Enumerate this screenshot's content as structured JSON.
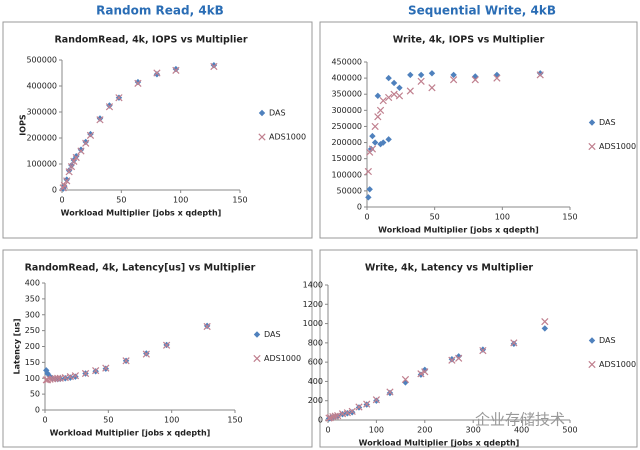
{
  "headers": [
    "Random Read, 4kB",
    "Sequential Write, 4kB"
  ],
  "watermark": "企业存储技术",
  "chart_data": [
    {
      "type": "scatter",
      "title": "RandomRead, 4k, IOPS vs Multiplier",
      "x_label": "Workload Multiplier [jobs x qdepth]",
      "y_label": "IOPS",
      "xlim": [
        0,
        150
      ],
      "xticks": [
        0,
        50,
        100,
        150
      ],
      "ylim": [
        0,
        500000
      ],
      "yticks": [
        0,
        100000,
        200000,
        300000,
        400000,
        500000
      ],
      "series": [
        {
          "name": "DAS",
          "color": "#4f81bd",
          "marker": "diamond",
          "x": [
            1,
            2,
            4,
            6,
            8,
            10,
            12,
            16,
            20,
            24,
            32,
            40,
            48,
            64,
            80,
            96,
            128
          ],
          "values": [
            5000,
            15000,
            40000,
            75000,
            95000,
            115000,
            130000,
            155000,
            185000,
            215000,
            275000,
            325000,
            355000,
            415000,
            445000,
            465000,
            480000
          ]
        },
        {
          "name": "ADS1000",
          "color": "#c0808f",
          "marker": "x",
          "x": [
            1,
            2,
            4,
            6,
            8,
            10,
            12,
            16,
            20,
            24,
            32,
            40,
            48,
            64,
            80,
            96,
            128
          ],
          "values": [
            8000,
            18000,
            35000,
            70000,
            90000,
            110000,
            125000,
            150000,
            180000,
            210000,
            270000,
            320000,
            355000,
            410000,
            450000,
            460000,
            475000
          ]
        }
      ]
    },
    {
      "type": "scatter",
      "title": "Write, 4k, IOPS vs Multiplier",
      "x_label": "Workload Multiplier [jobs x qdepth]",
      "xlim": [
        0,
        150
      ],
      "xticks": [
        0,
        50,
        100,
        150
      ],
      "ylim": [
        0,
        450000
      ],
      "yticks": [
        0,
        50000,
        100000,
        150000,
        200000,
        250000,
        300000,
        350000,
        400000,
        450000
      ],
      "series": [
        {
          "name": "DAS",
          "color": "#4f81bd",
          "marker": "diamond",
          "x": [
            1,
            2,
            3,
            4,
            6,
            8,
            10,
            12,
            16,
            16,
            20,
            24,
            32,
            40,
            48,
            64,
            80,
            96,
            128
          ],
          "values": [
            30000,
            55000,
            180000,
            220000,
            200000,
            345000,
            195000,
            200000,
            210000,
            400000,
            385000,
            370000,
            410000,
            410000,
            415000,
            410000,
            405000,
            410000,
            415000
          ]
        },
        {
          "name": "ADS1000",
          "color": "#c0808f",
          "marker": "x",
          "x": [
            1,
            2,
            4,
            6,
            8,
            10,
            12,
            16,
            20,
            24,
            32,
            40,
            48,
            64,
            80,
            96,
            128
          ],
          "values": [
            110000,
            170000,
            180000,
            250000,
            280000,
            300000,
            330000,
            340000,
            350000,
            345000,
            360000,
            390000,
            370000,
            395000,
            395000,
            400000,
            410000
          ]
        }
      ]
    },
    {
      "type": "scatter",
      "title": "RandomRead, 4k, Latency[us] vs Multiplier",
      "x_label": "Workload Multiplier [jobs x qdepth]",
      "y_label": "Latency [us]",
      "xlim": [
        0,
        150
      ],
      "xticks": [
        0,
        50,
        100,
        150
      ],
      "ylim": [
        0,
        400
      ],
      "yticks": [
        0,
        50,
        100,
        150,
        200,
        250,
        300,
        350,
        400
      ],
      "series": [
        {
          "name": "DAS",
          "color": "#4f81bd",
          "marker": "diamond",
          "x": [
            1,
            2,
            4,
            6,
            8,
            10,
            12,
            16,
            20,
            24,
            32,
            40,
            48,
            64,
            80,
            96,
            128
          ],
          "values": [
            125,
            115,
            105,
            100,
            98,
            97,
            98,
            100,
            102,
            105,
            115,
            122,
            130,
            155,
            178,
            205,
            265
          ]
        },
        {
          "name": "ADS1000",
          "color": "#c0808f",
          "marker": "x",
          "x": [
            1,
            2,
            4,
            6,
            8,
            10,
            12,
            16,
            20,
            24,
            32,
            40,
            48,
            64,
            80,
            96,
            128
          ],
          "values": [
            95,
            95,
            97,
            98,
            99,
            100,
            100,
            102,
            105,
            108,
            115,
            124,
            132,
            155,
            176,
            204,
            263
          ]
        }
      ]
    },
    {
      "type": "scatter",
      "title": "Write, 4k, Latency vs Multiplier",
      "x_label": "Workload Multiplier [jobs x qdepth]",
      "xlim": [
        0,
        500
      ],
      "xticks": [
        0,
        100,
        200,
        300,
        400,
        500
      ],
      "ylim": [
        0,
        1400
      ],
      "yticks": [
        0,
        200,
        400,
        600,
        800,
        1000,
        1200,
        1400
      ],
      "series": [
        {
          "name": "DAS",
          "color": "#4f81bd",
          "marker": "diamond",
          "x": [
            2,
            5,
            10,
            15,
            20,
            30,
            40,
            50,
            64,
            80,
            100,
            128,
            160,
            192,
            200,
            256,
            270,
            320,
            384,
            448
          ],
          "values": [
            15,
            20,
            30,
            35,
            40,
            60,
            70,
            80,
            130,
            160,
            200,
            280,
            390,
            470,
            520,
            630,
            660,
            730,
            790,
            950
          ]
        },
        {
          "name": "ADS1000",
          "color": "#c0808f",
          "marker": "x",
          "x": [
            2,
            5,
            10,
            15,
            20,
            30,
            40,
            50,
            64,
            80,
            100,
            128,
            160,
            192,
            200,
            256,
            270,
            320,
            384,
            448
          ],
          "values": [
            20,
            25,
            35,
            40,
            45,
            65,
            75,
            90,
            135,
            165,
            210,
            290,
            420,
            480,
            500,
            620,
            640,
            720,
            800,
            1020
          ]
        }
      ]
    }
  ]
}
